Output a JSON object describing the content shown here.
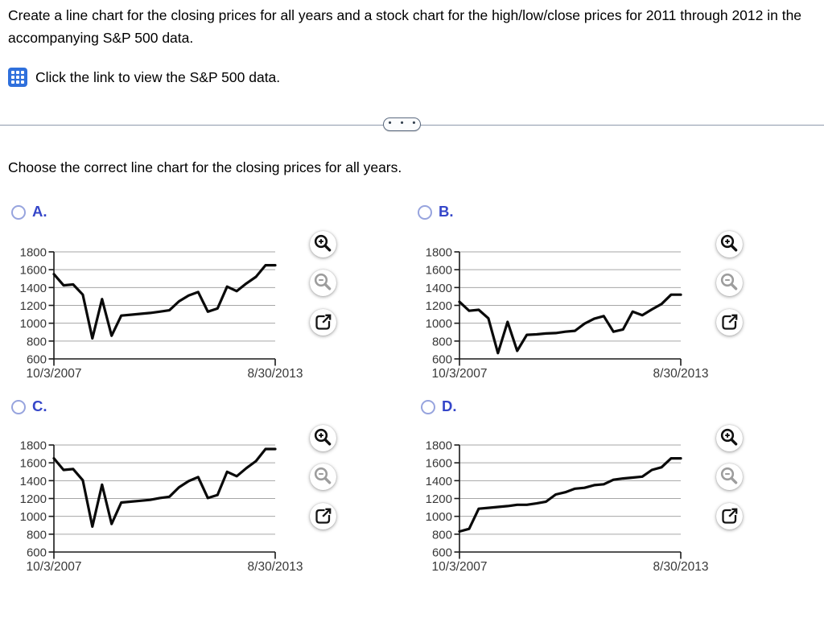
{
  "question": {
    "text": "Create a line chart for the closing prices for all years and a stock chart for the high/low/close prices for 2011 through 2012 in the accompanying S&P 500 data.",
    "data_link_label": "Click the link to view the S&P 500 data.",
    "prompt": "Choose the correct line chart for the closing prices for all years."
  },
  "divider": {
    "dots_label": "• • •"
  },
  "options": [
    {
      "id": "A",
      "label": "A."
    },
    {
      "id": "B",
      "label": "B."
    },
    {
      "id": "C",
      "label": "C."
    },
    {
      "id": "D",
      "label": "D."
    }
  ],
  "icon_buttons": [
    {
      "name": "zoom-in",
      "enabled": true
    },
    {
      "name": "zoom-out",
      "enabled": false
    },
    {
      "name": "open-in-new-window",
      "enabled": true
    }
  ],
  "chart_data": [
    {
      "option": "A",
      "type": "line",
      "x_axis": {
        "first_tick_label": "10/3/2007",
        "last_tick_label": "8/30/2013"
      },
      "y_axis": {
        "ticks": [
          1800,
          1600,
          1400,
          1200,
          1000,
          800,
          600
        ],
        "range": [
          600,
          1800
        ]
      },
      "grid": true,
      "values": [
        1550,
        1425,
        1435,
        1320,
        830,
        1270,
        860,
        1085,
        1095,
        1105,
        1115,
        1130,
        1145,
        1245,
        1310,
        1350,
        1130,
        1165,
        1410,
        1360,
        1445,
        1520,
        1650,
        1650
      ]
    },
    {
      "option": "B",
      "type": "line",
      "x_axis": {
        "first_tick_label": "10/3/2007",
        "last_tick_label": "8/30/2013"
      },
      "y_axis": {
        "ticks": [
          1800,
          1600,
          1400,
          1200,
          1000,
          800,
          600
        ],
        "range": [
          600,
          1800
        ]
      },
      "grid": true,
      "values": [
        1240,
        1140,
        1150,
        1055,
        665,
        1015,
        690,
        870,
        875,
        885,
        890,
        905,
        915,
        995,
        1050,
        1080,
        905,
        930,
        1130,
        1090,
        1155,
        1215,
        1320,
        1320
      ]
    },
    {
      "option": "C",
      "type": "line",
      "x_axis": {
        "first_tick_label": "10/3/2007",
        "last_tick_label": "8/30/2013"
      },
      "y_axis": {
        "ticks": [
          1800,
          1600,
          1400,
          1200,
          1000,
          800,
          600
        ],
        "range": [
          600,
          1800
        ]
      },
      "grid": true,
      "values": [
        1650,
        1520,
        1530,
        1405,
        885,
        1355,
        915,
        1155,
        1165,
        1175,
        1185,
        1205,
        1220,
        1325,
        1395,
        1440,
        1205,
        1240,
        1500,
        1450,
        1540,
        1620,
        1755,
        1755
      ]
    },
    {
      "option": "D",
      "type": "line",
      "x_axis": {
        "first_tick_label": "10/3/2007",
        "last_tick_label": "8/30/2013"
      },
      "y_axis": {
        "ticks": [
          1800,
          1600,
          1400,
          1200,
          1000,
          800,
          600
        ],
        "range": [
          600,
          1800
        ]
      },
      "grid": true,
      "values": [
        830,
        860,
        1085,
        1095,
        1105,
        1115,
        1130,
        1130,
        1145,
        1165,
        1245,
        1270,
        1310,
        1320,
        1350,
        1360,
        1410,
        1425,
        1435,
        1445,
        1520,
        1550,
        1650,
        1650
      ]
    }
  ],
  "colors": {
    "accent_blue": "#3546c9",
    "radio_border": "#97a4de",
    "icon_blue": "#2f70dc",
    "grid": "#a6a6a6",
    "axis": "#1a1a1a",
    "line": "#0a0a0a",
    "divider": "#8e99ac",
    "pill_border": "#5c6b80",
    "tick_text": "#383838"
  }
}
